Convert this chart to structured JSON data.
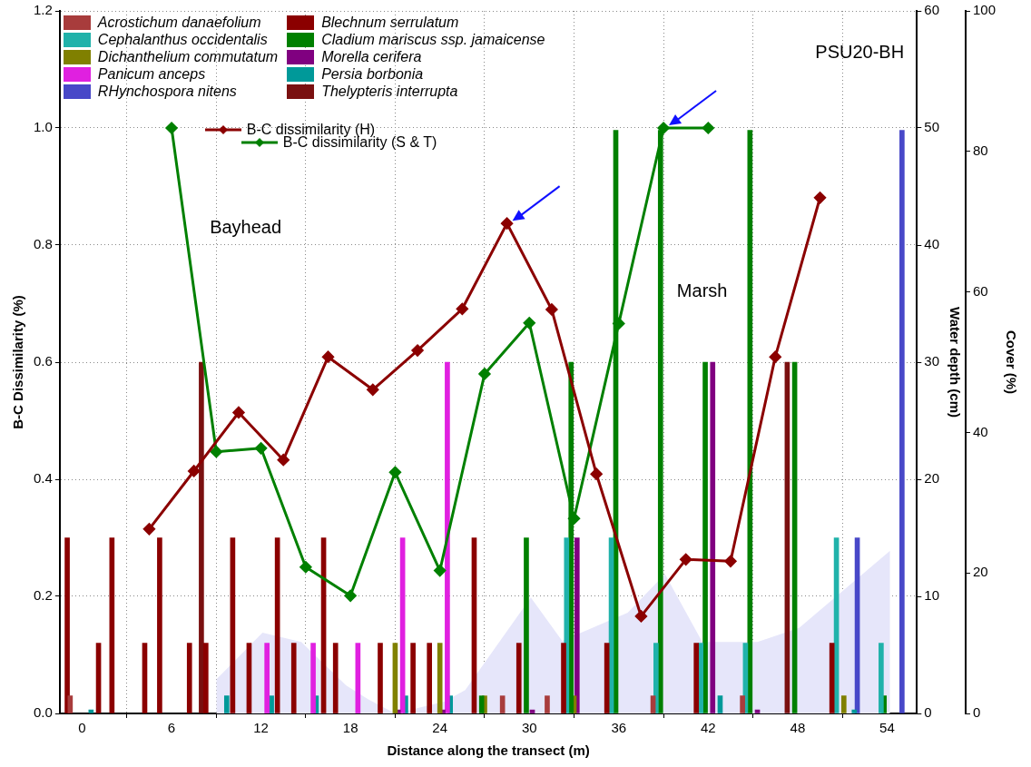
{
  "chart_data": {
    "type": "bar",
    "xlabel": "Distance along the transect (m)",
    "ylabel": "B-C Dissimilarity (%)",
    "y2label": "Water depth (cm)",
    "y3label": "Cover (%)",
    "xlim": [
      -1.5,
      56
    ],
    "xticks": [
      0,
      6,
      12,
      18,
      24,
      30,
      36,
      42,
      48,
      54
    ],
    "ylim": [
      0,
      1.2
    ],
    "yticks": [
      {
        "value": 0,
        "label": "0.0"
      },
      {
        "value": 0.2,
        "label": "0.2"
      },
      {
        "value": 0.4,
        "label": "0.4"
      },
      {
        "value": 0.6,
        "label": "0.6"
      },
      {
        "value": 0.8,
        "label": "0.8"
      },
      {
        "value": 1,
        "label": "1.0"
      },
      {
        "value": 1.2,
        "label": "1.2"
      }
    ],
    "y2lim": [
      0,
      60
    ],
    "y2ticks": [
      0,
      10,
      20,
      30,
      40,
      50,
      60
    ],
    "y3lim": [
      0,
      100
    ],
    "y3ticks": [
      0,
      20,
      40,
      60,
      80,
      100
    ],
    "grid": true,
    "legend": "top left",
    "annotations": [
      "PSU20-BH",
      "Bayhead",
      "Marsh"
    ],
    "series": [
      {
        "name": "Acrostichum danaefolium",
        "color": "#a83c3c",
        "axis": "y3",
        "x": [
          -0.8,
          28.2,
          31.2,
          38.3,
          44.3
        ],
        "values": [
          2.5,
          2.5,
          2.5,
          2.5,
          2.5
        ]
      },
      {
        "name": "Blechnum serrulatum",
        "color": "#8b0000",
        "axis": "y3",
        "x": [
          -1,
          1.1,
          2,
          4.2,
          5.2,
          7.2,
          8.3,
          10.1,
          11.2,
          13.1,
          14.2,
          16.2,
          17,
          20,
          22.2,
          23.3,
          26.3,
          29.3,
          32.3,
          35.2,
          41.2,
          50.3
        ],
        "values": [
          25,
          10,
          25,
          10,
          25,
          10,
          10,
          25,
          10,
          25,
          10,
          25,
          10,
          10,
          10,
          10,
          25,
          10,
          10,
          10,
          10,
          10
        ]
      },
      {
        "name": "Cephalanthus occidentalis",
        "color": "#20b2aa",
        "axis": "y3",
        "x": [
          32.5,
          35.5,
          38.5,
          41.5,
          44.5,
          50.6,
          53.6
        ],
        "values": [
          25,
          25,
          10,
          10,
          10,
          25,
          10
        ]
      },
      {
        "name": "Cladium mariscus ssp. jamaicense",
        "color": "#008000",
        "axis": "y3",
        "x": [
          26.8,
          29.8,
          32.8,
          35.8,
          38.8,
          41.8,
          44.8,
          47.8,
          53.8
        ],
        "values": [
          2.5,
          25,
          50,
          83,
          83,
          50,
          83,
          50,
          2.5
        ]
      },
      {
        "name": "Dichanthelium commutatum",
        "color": "#808000",
        "axis": "y3",
        "x": [
          21,
          24,
          27,
          33,
          51.1
        ],
        "values": [
          10,
          10,
          2.5,
          2.5,
          2.5
        ]
      },
      {
        "name": "Morella cerifera",
        "color": "#800080",
        "axis": "y3",
        "x": [
          21.2,
          24.2,
          30.2,
          33.2,
          42.3,
          45.3
        ],
        "values": [
          0.5,
          0.5,
          0.5,
          25,
          50,
          0.5
        ]
      },
      {
        "name": "Panicum anceps",
        "color": "#e020e0",
        "axis": "y3",
        "x": [
          12.4,
          15.5,
          18.5,
          21.5,
          24.5
        ],
        "values": [
          10,
          10,
          10,
          25,
          50
        ]
      },
      {
        "name": "Persia borbonia",
        "color": "#009999",
        "axis": "y3",
        "x": [
          0.6,
          9.7,
          12.7,
          15.7,
          21.7,
          24.7,
          42.8,
          51.8
        ],
        "values": [
          0.5,
          2.5,
          2.5,
          2.5,
          2.5,
          2.5,
          2.5,
          0.5
        ]
      },
      {
        "name": "RHynchospora nitens",
        "color": "#4848c8",
        "axis": "y3",
        "x": [
          52,
          55
        ],
        "values": [
          25,
          83
        ]
      },
      {
        "name": "Thelypteris interrupta",
        "color": "#7a1010",
        "axis": "y3",
        "x": [
          8,
          47.3
        ],
        "values": [
          50,
          50
        ]
      },
      {
        "type": "area",
        "color": "#e6e6fa",
        "axis": "y2",
        "x": [
          9,
          12.1,
          14.7,
          17.7,
          19.2,
          21,
          24.3,
          25.7,
          30.1,
          32.2,
          36.6,
          39.1,
          41.6,
          45.3,
          48.1,
          54.2
        ],
        "values": [
          2.9,
          6.9,
          6.1,
          2.4,
          1.2,
          0,
          1,
          2,
          9.9,
          6.2,
          8.6,
          11.9,
          6.1,
          6.1,
          7.3,
          13.9
        ]
      },
      {
        "type": "line",
        "name": "B-C dissimilarity (H)",
        "color": "#8b0000",
        "marker": "diamond",
        "x": [
          4.5,
          7.5,
          10.5,
          13.5,
          16.5,
          19.5,
          22.5,
          25.5,
          28.5,
          31.5,
          34.5,
          37.5,
          40.5,
          43.5,
          46.5,
          49.5
        ],
        "values": [
          0.315,
          0.414,
          0.514,
          0.433,
          0.609,
          0.553,
          0.62,
          0.691,
          0.837,
          0.69,
          0.409,
          0.166,
          0.263,
          0.26,
          0.609,
          0.881
        ]
      },
      {
        "type": "line",
        "name": "B-C dissimilarity (S & T)",
        "color": "#008000",
        "marker": "diamond",
        "x": [
          6,
          9,
          12,
          15,
          18,
          21,
          24,
          27,
          30,
          33,
          36,
          39,
          42
        ],
        "values": [
          1,
          0.447,
          0.453,
          0.25,
          0.201,
          0.412,
          0.244,
          0.58,
          0.667,
          0.333,
          0.666,
          1,
          1
        ]
      }
    ]
  }
}
